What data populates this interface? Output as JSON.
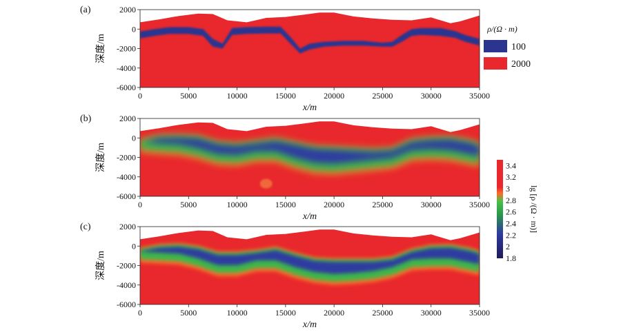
{
  "chart_data": [
    {
      "panel": "(a)",
      "type": "heatmap",
      "xlabel": "x/m",
      "ylabel": "深度/m",
      "xlim": [
        0,
        35000
      ],
      "ylim": [
        -6000,
        2000
      ],
      "xticks": [
        0,
        5000,
        10000,
        15000,
        20000,
        25000,
        30000,
        35000
      ],
      "yticks": [
        2000,
        0,
        -2000,
        -4000,
        -6000
      ],
      "legend": {
        "title": "ρ/(Ω · m)",
        "entries": [
          {
            "label": "100",
            "color": "#2b3590"
          },
          {
            "label": "2000",
            "color": "#e8282c"
          }
        ]
      },
      "surface": {
        "x": [
          0,
          2000,
          4000,
          6000,
          7500,
          9000,
          11000,
          13000,
          15000,
          17000,
          18500,
          20000,
          22000,
          24000,
          26000,
          28000,
          30000,
          32000,
          33000,
          35000
        ],
        "y": [
          700,
          1000,
          1350,
          1600,
          1550,
          900,
          700,
          1150,
          1250,
          1500,
          1700,
          1700,
          1300,
          1100,
          950,
          900,
          1200,
          600,
          800,
          1400
        ]
      },
      "layer": {
        "resistivity": 100,
        "x": [
          0,
          1500,
          3000,
          5000,
          6500,
          7500,
          8500,
          9500,
          11000,
          13000,
          14500,
          15500,
          16500,
          17500,
          19000,
          21000,
          23000,
          25000,
          26000,
          27000,
          28000,
          29000,
          31000,
          32500,
          33500,
          35000
        ],
        "top": [
          -250,
          0,
          200,
          200,
          0,
          -1000,
          -1500,
          100,
          200,
          250,
          250,
          -800,
          -2000,
          -1500,
          -1300,
          -1200,
          -1200,
          -1400,
          -1300,
          -600,
          0,
          100,
          100,
          -200,
          -600,
          -1000
        ],
        "bottom": [
          -950,
          -700,
          -500,
          -500,
          -700,
          -1800,
          -2000,
          -600,
          -500,
          -450,
          -450,
          -1500,
          -2500,
          -2100,
          -1800,
          -1700,
          -1700,
          -1800,
          -1800,
          -1300,
          -700,
          -600,
          -700,
          -900,
          -1300,
          -1700
        ]
      }
    },
    {
      "panel": "(b)",
      "type": "heatmap",
      "xlabel": "x/m",
      "ylabel": "深度/m",
      "xlim": [
        0,
        35000
      ],
      "ylim": [
        -6000,
        2000
      ],
      "xticks": [
        0,
        5000,
        10000,
        15000,
        20000,
        25000,
        30000,
        35000
      ],
      "yticks": [
        2000,
        0,
        -2000,
        -4000,
        -6000
      ],
      "surface": {
        "x": [
          0,
          2000,
          4000,
          6000,
          7500,
          9000,
          11000,
          13000,
          15000,
          17000,
          18500,
          20000,
          22000,
          24000,
          26000,
          28000,
          30000,
          32000,
          33000,
          35000
        ],
        "y": [
          700,
          1000,
          1350,
          1600,
          1550,
          900,
          700,
          1150,
          1250,
          1500,
          1700,
          1700,
          1300,
          1100,
          950,
          900,
          1200,
          600,
          800,
          1400
        ]
      },
      "layer": {
        "x": [
          0,
          2000,
          4000,
          6000,
          8000,
          10000,
          12000,
          14000,
          16000,
          18000,
          20000,
          22000,
          24000,
          26000,
          28000,
          30000,
          32000,
          34000,
          35000
        ],
        "top": [
          -250,
          200,
          250,
          150,
          -450,
          -600,
          -350,
          -100,
          -500,
          -900,
          -1000,
          -1100,
          -1200,
          -1100,
          -200,
          0,
          50,
          -300,
          -600
        ],
        "bottom": [
          -800,
          -1000,
          -1100,
          -1500,
          -2100,
          -2200,
          -1800,
          -1800,
          -2500,
          -3000,
          -3100,
          -2900,
          -2700,
          -2500,
          -1700,
          -1600,
          -1700,
          -2100,
          -2300
        ]
      },
      "anomaly": {
        "x": 13000,
        "y": -4700
      },
      "colorbar": {
        "label": "lg [ρ /(Ω · m)]",
        "min": 1.8,
        "max": 3.5,
        "ticks": [
          "3.4",
          "3.2",
          "3",
          "2.8",
          "2.6",
          "2.4",
          "2.2",
          "2",
          "1.8"
        ]
      }
    },
    {
      "panel": "(c)",
      "type": "heatmap",
      "xlabel": "x/m",
      "ylabel": "深度/m",
      "xlim": [
        0,
        35000
      ],
      "ylim": [
        -6000,
        2000
      ],
      "xticks": [
        0,
        5000,
        10000,
        15000,
        20000,
        25000,
        30000,
        35000
      ],
      "yticks": [
        2000,
        0,
        -2000,
        -4000,
        -6000
      ],
      "surface": {
        "x": [
          0,
          2000,
          4000,
          6000,
          7500,
          9000,
          11000,
          13000,
          15000,
          17000,
          18500,
          20000,
          22000,
          24000,
          26000,
          28000,
          30000,
          32000,
          33000,
          35000
        ],
        "y": [
          700,
          1000,
          1350,
          1600,
          1550,
          900,
          700,
          1150,
          1250,
          1500,
          1700,
          1700,
          1300,
          1100,
          950,
          900,
          1200,
          600,
          800,
          1400
        ]
      },
      "layer": {
        "x": [
          0,
          2000,
          4000,
          6000,
          8000,
          10000,
          12000,
          14000,
          16000,
          18000,
          20000,
          22000,
          24000,
          26000,
          28000,
          30000,
          32000,
          34000,
          35000
        ],
        "top": [
          -300,
          50,
          150,
          -100,
          -700,
          -700,
          -500,
          -200,
          -800,
          -1300,
          -1400,
          -1400,
          -1400,
          -1200,
          -400,
          0,
          50,
          -300,
          -600
        ],
        "bottom": [
          -1000,
          -1100,
          -1200,
          -1700,
          -2400,
          -2400,
          -1900,
          -1900,
          -2600,
          -3100,
          -3300,
          -3200,
          -3000,
          -2600,
          -1800,
          -1700,
          -1700,
          -2100,
          -2300
        ]
      }
    }
  ]
}
